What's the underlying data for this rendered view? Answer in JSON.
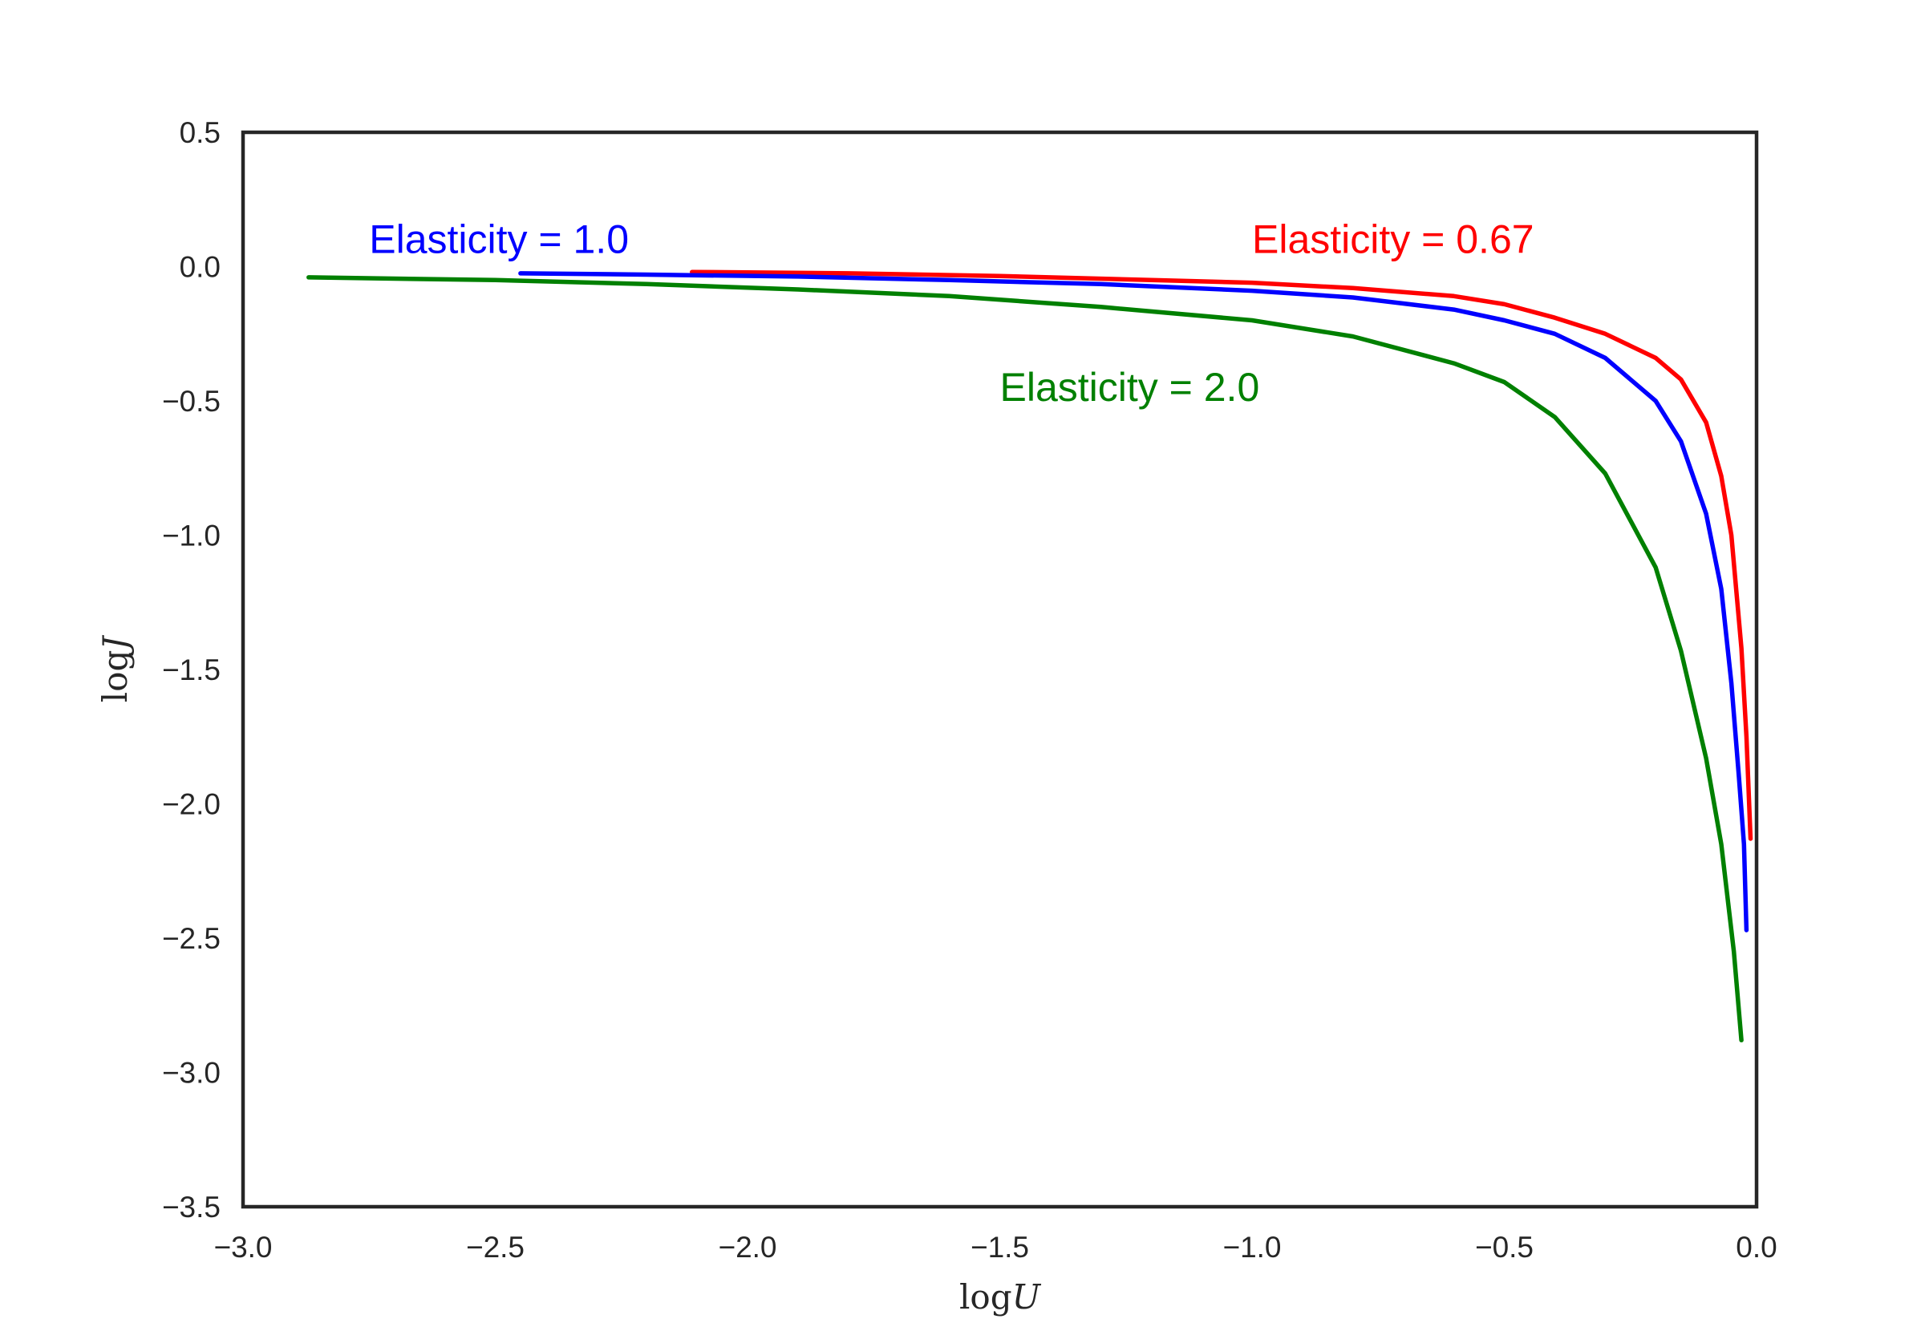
{
  "chart_data": {
    "type": "line",
    "title": "",
    "xlabel": {
      "prefix": "log",
      "var": "U"
    },
    "ylabel": {
      "prefix": "log",
      "var": "J"
    },
    "xlim": [
      -3.0,
      0.0
    ],
    "ylim": [
      -3.5,
      0.5
    ],
    "x_ticks": [
      -3.0,
      -2.5,
      -2.0,
      -1.5,
      -1.0,
      -0.5,
      0.0
    ],
    "y_ticks": [
      0.5,
      0.0,
      -0.5,
      -1.0,
      -1.5,
      -2.0,
      -2.5,
      -3.0,
      -3.5
    ],
    "x_tick_labels": [
      "−3.0",
      "−2.5",
      "−2.0",
      "−1.5",
      "−1.0",
      "−0.5",
      "0.0"
    ],
    "y_tick_labels": [
      "0.5",
      "0.0",
      "−0.5",
      "−1.0",
      "−1.5",
      "−2.0",
      "−2.5",
      "−3.0",
      "−3.5"
    ],
    "grid": false,
    "legend": "none",
    "series": [
      {
        "name": "Elasticity = 0.67",
        "color": "#ff0000",
        "points": [
          [
            -2.11,
            -0.02
          ],
          [
            -1.8,
            -0.025
          ],
          [
            -1.5,
            -0.035
          ],
          [
            -1.2,
            -0.05
          ],
          [
            -1.0,
            -0.06
          ],
          [
            -0.8,
            -0.08
          ],
          [
            -0.6,
            -0.11
          ],
          [
            -0.5,
            -0.14
          ],
          [
            -0.4,
            -0.19
          ],
          [
            -0.3,
            -0.25
          ],
          [
            -0.2,
            -0.34
          ],
          [
            -0.15,
            -0.42
          ],
          [
            -0.1,
            -0.58
          ],
          [
            -0.07,
            -0.78
          ],
          [
            -0.05,
            -1.0
          ],
          [
            -0.03,
            -1.42
          ],
          [
            -0.02,
            -1.75
          ],
          [
            -0.012,
            -2.13
          ]
        ]
      },
      {
        "name": "Elasticity = 1.0",
        "color": "#0000ff",
        "points": [
          [
            -2.45,
            -0.025
          ],
          [
            -2.2,
            -0.03
          ],
          [
            -1.9,
            -0.037
          ],
          [
            -1.6,
            -0.05
          ],
          [
            -1.3,
            -0.065
          ],
          [
            -1.0,
            -0.09
          ],
          [
            -0.8,
            -0.115
          ],
          [
            -0.6,
            -0.16
          ],
          [
            -0.5,
            -0.2
          ],
          [
            -0.4,
            -0.25
          ],
          [
            -0.3,
            -0.34
          ],
          [
            -0.2,
            -0.5
          ],
          [
            -0.15,
            -0.65
          ],
          [
            -0.1,
            -0.92
          ],
          [
            -0.07,
            -1.2
          ],
          [
            -0.05,
            -1.55
          ],
          [
            -0.035,
            -1.9
          ],
          [
            -0.025,
            -2.15
          ],
          [
            -0.02,
            -2.47
          ]
        ]
      },
      {
        "name": "Elasticity = 2.0",
        "color": "#008000",
        "points": [
          [
            -2.87,
            -0.04
          ],
          [
            -2.5,
            -0.05
          ],
          [
            -2.2,
            -0.065
          ],
          [
            -1.9,
            -0.085
          ],
          [
            -1.6,
            -0.11
          ],
          [
            -1.3,
            -0.15
          ],
          [
            -1.0,
            -0.2
          ],
          [
            -0.8,
            -0.26
          ],
          [
            -0.6,
            -0.36
          ],
          [
            -0.5,
            -0.43
          ],
          [
            -0.4,
            -0.56
          ],
          [
            -0.3,
            -0.77
          ],
          [
            -0.2,
            -1.12
          ],
          [
            -0.15,
            -1.43
          ],
          [
            -0.1,
            -1.83
          ],
          [
            -0.07,
            -2.15
          ],
          [
            -0.045,
            -2.55
          ],
          [
            -0.03,
            -2.88
          ]
        ]
      }
    ],
    "annotations": [
      {
        "text": "Elasticity = 1.0",
        "color": "#0000ff",
        "x": -2.75,
        "y": 0.0
      },
      {
        "text": "Elasticity = 0.67",
        "color": "#ff0000",
        "x": -1.0,
        "y": 0.0
      },
      {
        "text": "Elasticity = 2.0",
        "color": "#008000",
        "x": -1.5,
        "y": -0.55
      }
    ]
  }
}
